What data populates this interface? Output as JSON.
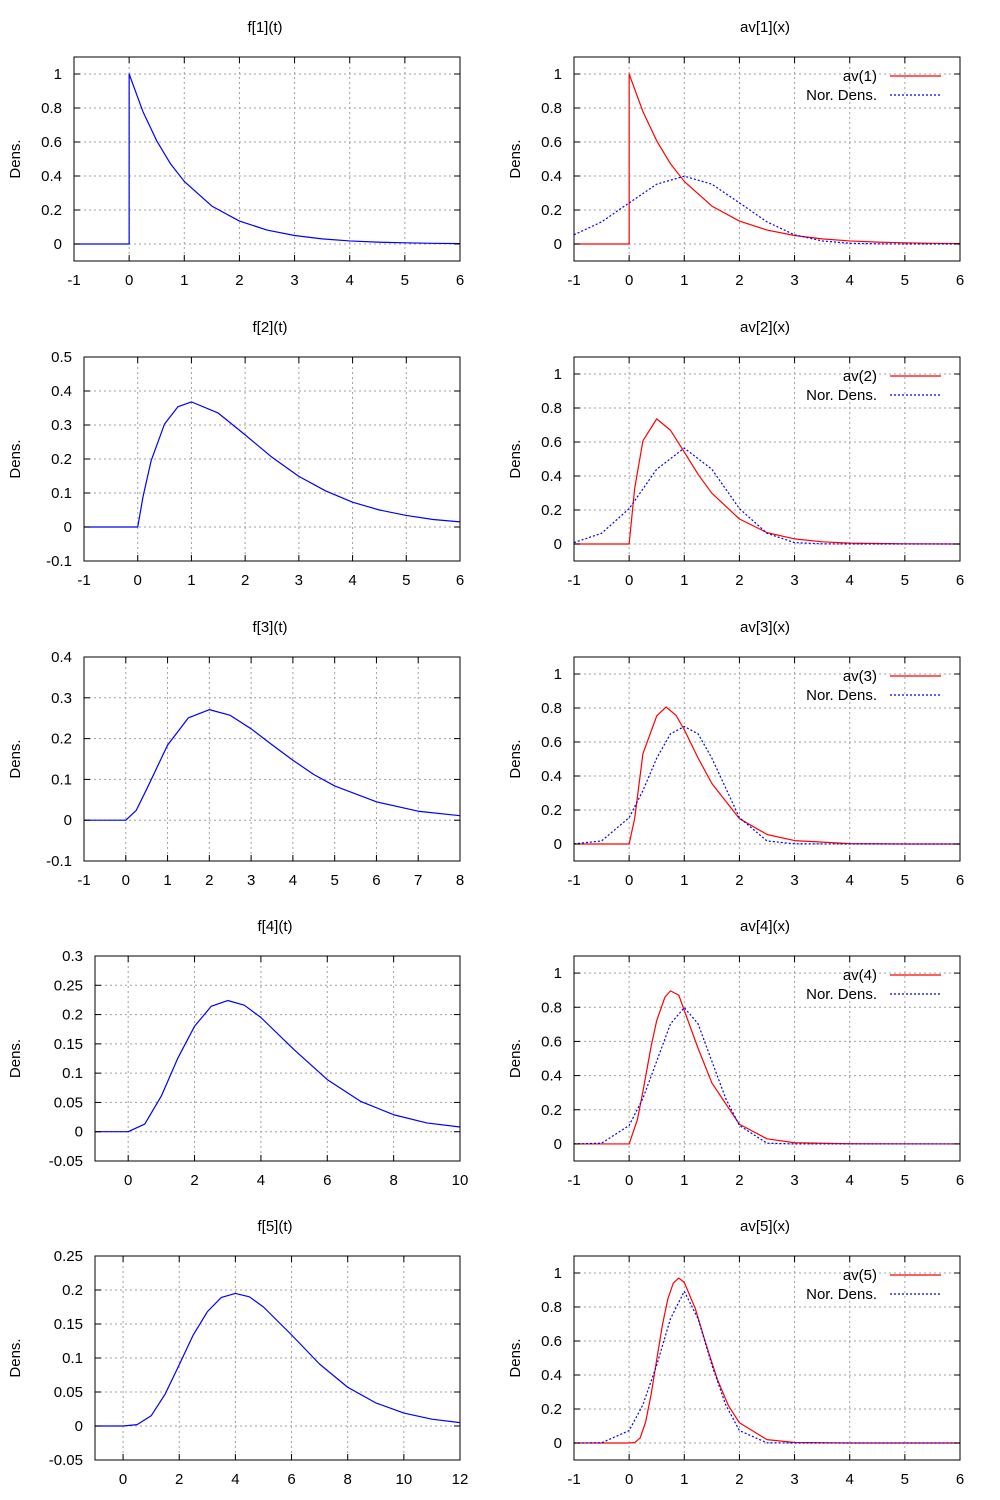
{
  "figure": {
    "panels_note": "",
    "ylabel_common": "Dens."
  },
  "colors": {
    "f_series": "#0000ff",
    "av_series": "#ff0000",
    "normal_series": "#0000ff",
    "grid": "#a0a0a0"
  },
  "chart_data": [
    {
      "id": "f1",
      "type": "line",
      "title": "f[1](t)",
      "xlabel": "",
      "ylabel": "Dens.",
      "xlim": [
        -1,
        6
      ],
      "ylim": [
        -0.1,
        1.1
      ],
      "xticks": [
        -1,
        0,
        1,
        2,
        3,
        4,
        5,
        6
      ],
      "xtick_labels": [
        "-1",
        "0",
        "1",
        "2",
        "3",
        "4",
        "5",
        "6"
      ],
      "yticks": [
        0,
        0.2,
        0.4,
        0.6,
        0.8,
        1
      ],
      "ytick_labels": [
        "0",
        "0.2",
        "0.4",
        "0.6",
        "0.8",
        "1"
      ],
      "grid": true,
      "series": [
        {
          "style": "solid",
          "color": "#0000ff",
          "x": [
            -1,
            -0.0001,
            0,
            0.25,
            0.5,
            0.75,
            1,
            1.5,
            2,
            2.5,
            3,
            3.5,
            4,
            4.5,
            5,
            5.5,
            6
          ],
          "y": [
            0,
            0,
            1,
            0.779,
            0.607,
            0.472,
            0.368,
            0.223,
            0.135,
            0.082,
            0.05,
            0.03,
            0.018,
            0.011,
            0.007,
            0.004,
            0.002
          ]
        }
      ]
    },
    {
      "id": "av1",
      "type": "line",
      "title": "av[1](x)",
      "xlabel": "",
      "ylabel": "Dens.",
      "xlim": [
        -1,
        6
      ],
      "ylim": [
        -0.1,
        1.1
      ],
      "xticks": [
        -1,
        0,
        1,
        2,
        3,
        4,
        5,
        6
      ],
      "xtick_labels": [
        "-1",
        "0",
        "1",
        "2",
        "3",
        "4",
        "5",
        "6"
      ],
      "yticks": [
        0,
        0.2,
        0.4,
        0.6,
        0.8,
        1
      ],
      "ytick_labels": [
        "0",
        "0.2",
        "0.4",
        "0.6",
        "0.8",
        "1"
      ],
      "grid": true,
      "legend": "top-right",
      "series": [
        {
          "name": "av(1)",
          "style": "solid",
          "color": "#ff0000",
          "x": [
            -1,
            -0.0001,
            0,
            0.25,
            0.5,
            0.75,
            1,
            1.5,
            2,
            2.5,
            3,
            3.5,
            4,
            4.5,
            5,
            5.5,
            6
          ],
          "y": [
            0,
            0,
            1,
            0.779,
            0.607,
            0.472,
            0.368,
            0.223,
            0.135,
            0.082,
            0.05,
            0.03,
            0.018,
            0.011,
            0.007,
            0.004,
            0.002
          ]
        },
        {
          "name": "Nor. Dens.",
          "style": "dotted",
          "color": "#0000ff",
          "x": [
            -1,
            -0.5,
            0,
            0.5,
            1,
            1.5,
            2,
            2.5,
            3,
            3.5,
            4,
            4.5,
            5,
            5.5,
            6
          ],
          "y": [
            0.054,
            0.13,
            0.242,
            0.352,
            0.399,
            0.352,
            0.242,
            0.13,
            0.054,
            0.018,
            0.004,
            0.001,
            0,
            0,
            0
          ]
        }
      ]
    },
    {
      "id": "f2",
      "type": "line",
      "title": "f[2](t)",
      "xlabel": "",
      "ylabel": "Dens.",
      "xlim": [
        -1,
        6
      ],
      "ylim": [
        -0.1,
        0.5
      ],
      "xticks": [
        -1,
        0,
        1,
        2,
        3,
        4,
        5,
        6
      ],
      "xtick_labels": [
        "-1",
        "0",
        "1",
        "2",
        "3",
        "4",
        "5",
        "6"
      ],
      "yticks": [
        -0.1,
        0,
        0.1,
        0.2,
        0.3,
        0.4,
        0.5
      ],
      "ytick_labels": [
        "-0.1",
        "0",
        "0.1",
        "0.2",
        "0.3",
        "0.4",
        "0.5"
      ],
      "grid": true,
      "series": [
        {
          "style": "solid",
          "color": "#0000ff",
          "x": [
            -1,
            0,
            0.1,
            0.25,
            0.5,
            0.75,
            1,
            1.5,
            2,
            2.5,
            3,
            3.5,
            4,
            4.5,
            5,
            5.5,
            6
          ],
          "y": [
            0,
            0,
            0.09,
            0.195,
            0.303,
            0.354,
            0.368,
            0.335,
            0.271,
            0.205,
            0.149,
            0.106,
            0.073,
            0.05,
            0.034,
            0.022,
            0.015
          ]
        }
      ]
    },
    {
      "id": "av2",
      "type": "line",
      "title": "av[2](x)",
      "xlabel": "",
      "ylabel": "Dens.",
      "xlim": [
        -1,
        6
      ],
      "ylim": [
        -0.1,
        1.1
      ],
      "xticks": [
        -1,
        0,
        1,
        2,
        3,
        4,
        5,
        6
      ],
      "xtick_labels": [
        "-1",
        "0",
        "1",
        "2",
        "3",
        "4",
        "5",
        "6"
      ],
      "yticks": [
        0,
        0.2,
        0.4,
        0.6,
        0.8,
        1
      ],
      "ytick_labels": [
        "0",
        "0.2",
        "0.4",
        "0.6",
        "0.8",
        "1"
      ],
      "grid": true,
      "legend": "top-right",
      "series": [
        {
          "name": "av(2)",
          "style": "solid",
          "color": "#ff0000",
          "x": [
            -1,
            0,
            0.1,
            0.25,
            0.5,
            0.75,
            1,
            1.25,
            1.5,
            2,
            2.5,
            3,
            3.5,
            4,
            5,
            6
          ],
          "y": [
            0,
            0,
            0.327,
            0.607,
            0.736,
            0.669,
            0.541,
            0.41,
            0.299,
            0.147,
            0.067,
            0.03,
            0.013,
            0.005,
            0.001,
            0
          ]
        },
        {
          "name": "Nor. Dens.",
          "style": "dotted",
          "color": "#0000ff",
          "x": [
            -1,
            -0.5,
            0,
            0.5,
            1,
            1.5,
            2,
            2.5,
            3,
            3.5,
            4,
            5,
            6
          ],
          "y": [
            0.008,
            0.063,
            0.208,
            0.44,
            0.564,
            0.44,
            0.208,
            0.063,
            0.008,
            0.001,
            0,
            0,
            0
          ]
        }
      ]
    },
    {
      "id": "f3",
      "type": "line",
      "title": "f[3](t)",
      "xlabel": "",
      "ylabel": "Dens.",
      "xlim": [
        -1,
        8
      ],
      "ylim": [
        -0.1,
        0.4
      ],
      "xticks": [
        -1,
        0,
        1,
        2,
        3,
        4,
        5,
        6,
        7,
        8
      ],
      "xtick_labels": [
        "-1",
        "0",
        "1",
        "2",
        "3",
        "4",
        "5",
        "6",
        "7",
        "8"
      ],
      "yticks": [
        -0.1,
        0,
        0.1,
        0.2,
        0.3,
        0.4
      ],
      "ytick_labels": [
        "-0.1",
        "0",
        "0.1",
        "0.2",
        "0.3",
        "0.4"
      ],
      "grid": true,
      "series": [
        {
          "style": "solid",
          "color": "#0000ff",
          "x": [
            -1,
            0,
            0.25,
            0.5,
            1,
            1.5,
            2,
            2.5,
            3,
            3.5,
            4,
            4.5,
            5,
            6,
            7,
            8
          ],
          "y": [
            0,
            0,
            0.024,
            0.076,
            0.184,
            0.251,
            0.271,
            0.257,
            0.224,
            0.185,
            0.147,
            0.112,
            0.084,
            0.045,
            0.022,
            0.011
          ]
        }
      ]
    },
    {
      "id": "av3",
      "type": "line",
      "title": "av[3](x)",
      "xlabel": "",
      "ylabel": "Dens.",
      "xlim": [
        -1,
        6
      ],
      "ylim": [
        -0.1,
        1.1
      ],
      "xticks": [
        -1,
        0,
        1,
        2,
        3,
        4,
        5,
        6
      ],
      "xtick_labels": [
        "-1",
        "0",
        "1",
        "2",
        "3",
        "4",
        "5",
        "6"
      ],
      "yticks": [
        0,
        0.2,
        0.4,
        0.6,
        0.8,
        1
      ],
      "ytick_labels": [
        "0",
        "0.2",
        "0.4",
        "0.6",
        "0.8",
        "1"
      ],
      "grid": true,
      "legend": "top-right",
      "series": [
        {
          "name": "av(3)",
          "style": "solid",
          "color": "#ff0000",
          "x": [
            -1,
            0,
            0.1,
            0.25,
            0.5,
            0.67,
            0.85,
            1,
            1.25,
            1.5,
            2,
            2.5,
            3,
            4,
            5,
            6
          ],
          "y": [
            0,
            0,
            0.15,
            0.531,
            0.753,
            0.806,
            0.757,
            0.672,
            0.506,
            0.356,
            0.149,
            0.056,
            0.02,
            0.002,
            0,
            0
          ]
        },
        {
          "name": "Nor. Dens.",
          "style": "dotted",
          "color": "#0000ff",
          "x": [
            -1,
            -0.5,
            0,
            0.25,
            0.5,
            0.75,
            1,
            1.25,
            1.5,
            2,
            2.5,
            3,
            4,
            5,
            6
          ],
          "y": [
            0.001,
            0.018,
            0.155,
            0.314,
            0.505,
            0.648,
            0.691,
            0.648,
            0.505,
            0.155,
            0.018,
            0.001,
            0,
            0,
            0
          ]
        }
      ]
    },
    {
      "id": "f4",
      "type": "line",
      "title": "f[4](t)",
      "xlabel": "",
      "ylabel": "Dens.",
      "xlim": [
        -1,
        10
      ],
      "ylim": [
        -0.05,
        0.3
      ],
      "xticks": [
        0,
        2,
        4,
        6,
        8,
        10
      ],
      "xtick_labels": [
        "0",
        "2",
        "4",
        "6",
        "8",
        "10"
      ],
      "yticks": [
        -0.05,
        0,
        0.05,
        0.1,
        0.15,
        0.2,
        0.25,
        0.3
      ],
      "ytick_labels": [
        "-0.05",
        "0",
        "0.05",
        "0.1",
        "0.15",
        "0.2",
        "0.25",
        "0.3"
      ],
      "grid": true,
      "series": [
        {
          "style": "solid",
          "color": "#0000ff",
          "x": [
            -1,
            0,
            0.5,
            1,
            1.5,
            2,
            2.5,
            3,
            3.5,
            4,
            5,
            6,
            7,
            8,
            9,
            10
          ],
          "y": [
            0,
            0,
            0.013,
            0.061,
            0.126,
            0.18,
            0.214,
            0.224,
            0.216,
            0.195,
            0.14,
            0.089,
            0.052,
            0.029,
            0.015,
            0.008
          ]
        }
      ]
    },
    {
      "id": "av4",
      "type": "line",
      "title": "av[4](x)",
      "xlabel": "",
      "ylabel": "Dens.",
      "xlim": [
        -1,
        6
      ],
      "ylim": [
        -0.1,
        1.1
      ],
      "xticks": [
        -1,
        0,
        1,
        2,
        3,
        4,
        5,
        6
      ],
      "xtick_labels": [
        "-1",
        "0",
        "1",
        "2",
        "3",
        "4",
        "5",
        "6"
      ],
      "yticks": [
        0,
        0.2,
        0.4,
        0.6,
        0.8,
        1
      ],
      "ytick_labels": [
        "0",
        "0.2",
        "0.4",
        "0.6",
        "0.8",
        "1"
      ],
      "grid": true,
      "legend": "top-right",
      "series": [
        {
          "name": "av(4)",
          "style": "solid",
          "color": "#ff0000",
          "x": [
            -1,
            0,
            0.15,
            0.25,
            0.4,
            0.5,
            0.65,
            0.75,
            0.9,
            1,
            1.25,
            1.5,
            2,
            2.5,
            3,
            4,
            6
          ],
          "y": [
            0,
            0,
            0.142,
            0.307,
            0.574,
            0.722,
            0.86,
            0.896,
            0.871,
            0.781,
            0.56,
            0.357,
            0.115,
            0.03,
            0.007,
            0.001,
            0
          ]
        },
        {
          "name": "Nor. Dens.",
          "style": "dotted",
          "color": "#0000ff",
          "x": [
            -1,
            -0.5,
            0,
            0.25,
            0.5,
            0.75,
            1,
            1.25,
            1.5,
            1.75,
            2,
            2.5,
            3,
            4,
            6
          ],
          "y": [
            0,
            0.004,
            0.108,
            0.267,
            0.484,
            0.703,
            0.798,
            0.703,
            0.484,
            0.267,
            0.108,
            0.004,
            0,
            0,
            0
          ]
        }
      ]
    },
    {
      "id": "f5",
      "type": "line",
      "title": "f[5](t)",
      "xlabel": "",
      "ylabel": "Dens.",
      "xlim": [
        -1,
        12
      ],
      "ylim": [
        -0.05,
        0.25
      ],
      "xticks": [
        0,
        2,
        4,
        6,
        8,
        10,
        12
      ],
      "xtick_labels": [
        "0",
        "2",
        "4",
        "6",
        "8",
        "10",
        "12"
      ],
      "yticks": [
        -0.05,
        0,
        0.05,
        0.1,
        0.15,
        0.2,
        0.25
      ],
      "ytick_labels": [
        "-0.05",
        "0",
        "0.05",
        "0.1",
        "0.15",
        "0.2",
        "0.25"
      ],
      "grid": true,
      "series": [
        {
          "style": "solid",
          "color": "#0000ff",
          "x": [
            -1,
            0,
            0.5,
            1,
            1.5,
            2,
            2.5,
            3,
            3.5,
            4,
            4.5,
            5,
            6,
            7,
            8,
            9,
            10,
            11,
            12
          ],
          "y": [
            0,
            0,
            0.002,
            0.015,
            0.047,
            0.09,
            0.134,
            0.168,
            0.189,
            0.195,
            0.19,
            0.175,
            0.134,
            0.091,
            0.057,
            0.034,
            0.019,
            0.01,
            0.005
          ]
        }
      ]
    },
    {
      "id": "av5",
      "type": "line",
      "title": "av[5](x)",
      "xlabel": "",
      "ylabel": "Dens.",
      "xlim": [
        -1,
        6
      ],
      "ylim": [
        -0.1,
        1.1
      ],
      "xticks": [
        -1,
        0,
        1,
        2,
        3,
        4,
        5,
        6
      ],
      "xtick_labels": [
        "-1",
        "0",
        "1",
        "2",
        "3",
        "4",
        "5",
        "6"
      ],
      "yticks": [
        0,
        0.2,
        0.4,
        0.6,
        0.8,
        1
      ],
      "ytick_labels": [
        "0",
        "0.2",
        "0.4",
        "0.6",
        "0.8",
        "1"
      ],
      "grid": true,
      "legend": "top-right",
      "series": [
        {
          "name": "av(5)",
          "style": "solid",
          "color": "#ff0000",
          "x": [
            -1,
            0,
            0.1,
            0.2,
            0.3,
            0.4,
            0.5,
            0.6,
            0.7,
            0.8,
            0.9,
            1,
            1.2,
            1.4,
            1.6,
            1.8,
            2,
            2.5,
            3,
            4,
            6
          ],
          "y": [
            0,
            0,
            0.002,
            0.03,
            0.125,
            0.289,
            0.49,
            0.688,
            0.845,
            0.94,
            0.97,
            0.945,
            0.79,
            0.575,
            0.374,
            0.22,
            0.119,
            0.02,
            0.003,
            0,
            0
          ]
        },
        {
          "name": "Nor. Dens.",
          "style": "dotted",
          "color": "#0000ff",
          "x": [
            -1,
            -0.5,
            0,
            0.25,
            0.5,
            0.75,
            1,
            1.25,
            1.5,
            1.75,
            2,
            2.5,
            3,
            4,
            6
          ],
          "y": [
            0,
            0.001,
            0.073,
            0.225,
            0.459,
            0.731,
            0.892,
            0.731,
            0.459,
            0.225,
            0.073,
            0.001,
            0,
            0,
            0
          ]
        }
      ]
    }
  ]
}
